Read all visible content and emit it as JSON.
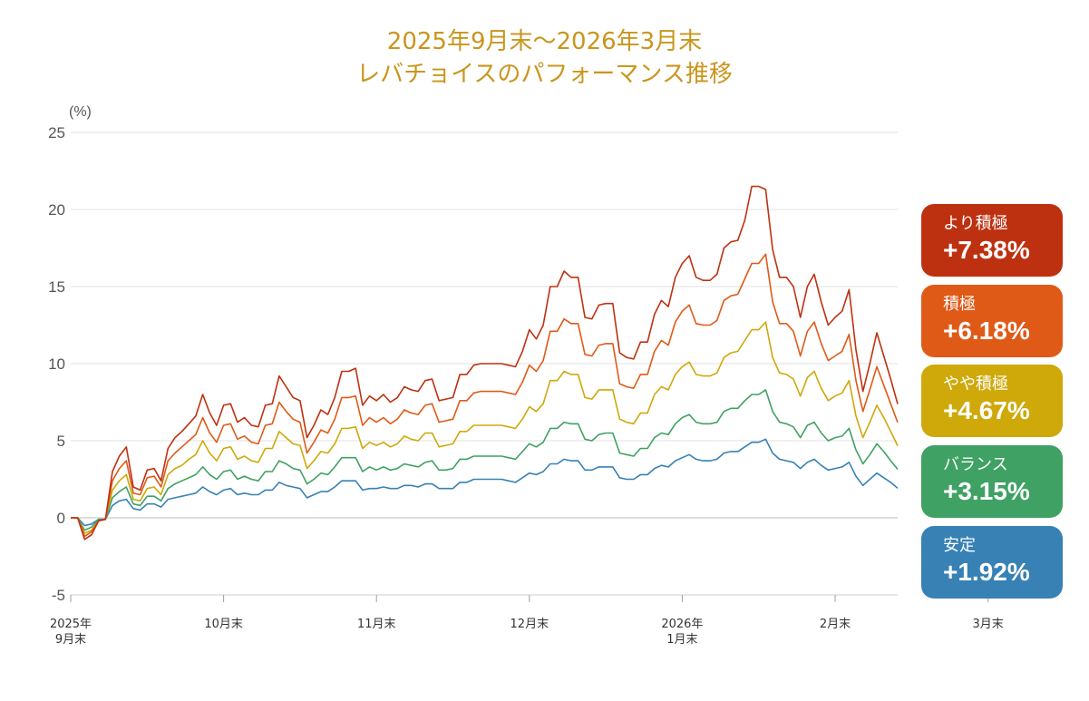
{
  "title_line1": "2025年9月末〜2026年3月末",
  "title_line2": "レバチョイスのパフォーマンス推移",
  "chart_data": {
    "type": "line",
    "ylabel": "(%)",
    "ylim": [
      -5,
      25
    ],
    "yticks": [
      "25",
      "20",
      "15",
      "10",
      "5",
      "0",
      "-5"
    ],
    "ytick_values": [
      25,
      20,
      15,
      10,
      5,
      0,
      -5
    ],
    "xticks": [
      {
        "pos": 0,
        "line1": "2025年",
        "line2": "9月末"
      },
      {
        "pos": 22,
        "line1": "10月末",
        "line2": ""
      },
      {
        "pos": 44,
        "line1": "11月末",
        "line2": ""
      },
      {
        "pos": 66,
        "line1": "12月末",
        "line2": ""
      },
      {
        "pos": 88,
        "line1": "2026年",
        "line2": "1月末"
      },
      {
        "pos": 110,
        "line1": "2月末",
        "line2": ""
      },
      {
        "pos": 132,
        "line1": "3月末",
        "line2": ""
      }
    ],
    "grid": true,
    "legend_position": "right",
    "series": [
      {
        "name": "より積極",
        "final": "+7.38%",
        "color": "#be3110",
        "values": [
          0,
          0,
          -1.4,
          -1.1,
          -0.2,
          -0.1,
          3.0,
          4.0,
          4.6,
          2.0,
          1.8,
          3.1,
          3.2,
          2.4,
          4.5,
          5.2,
          5.6,
          6.1,
          6.6,
          8.0,
          6.8,
          6.0,
          7.3,
          7.4,
          6.2,
          6.5,
          6.0,
          5.9,
          7.3,
          7.4,
          9.2,
          8.5,
          7.8,
          7.6,
          5.2,
          6.0,
          7.0,
          6.7,
          7.8,
          9.5,
          9.5,
          9.7,
          7.3,
          7.9,
          7.6,
          8.0,
          7.5,
          7.8,
          8.5,
          8.3,
          8.2,
          8.9,
          9.0,
          7.6,
          7.7,
          7.8,
          9.3,
          9.3,
          9.9,
          10.0,
          10.0,
          10.0,
          10.0,
          9.9,
          9.8,
          10.8,
          12.2,
          11.6,
          12.5,
          15.0,
          15.0,
          16.0,
          15.6,
          15.6,
          13.0,
          12.9,
          13.8,
          13.9,
          13.9,
          10.7,
          10.4,
          10.3,
          11.4,
          11.4,
          13.2,
          14.1,
          13.7,
          15.6,
          16.5,
          17.0,
          15.6,
          15.4,
          15.4,
          15.8,
          17.5,
          17.9,
          18.0,
          19.3,
          21.5,
          21.5,
          21.3,
          17.4,
          15.6,
          15.6,
          15.0,
          13.0,
          15.0,
          15.8,
          14.0,
          12.5,
          13.0,
          13.4,
          14.8,
          10.9,
          8.2,
          10.0,
          12.0,
          10.5,
          9.0,
          7.38
        ],
        "key": "s1"
      },
      {
        "name": "積極",
        "final": "+6.18%",
        "color": "#e05a17",
        "values": [
          0,
          0,
          -1.2,
          -0.9,
          -0.2,
          -0.1,
          2.4,
          3.2,
          3.7,
          1.6,
          1.5,
          2.6,
          2.7,
          2.0,
          3.7,
          4.2,
          4.6,
          5.0,
          5.4,
          6.5,
          5.5,
          4.9,
          6.0,
          6.1,
          5.1,
          5.3,
          4.9,
          4.8,
          6.0,
          6.1,
          7.5,
          6.9,
          6.4,
          6.2,
          4.2,
          4.9,
          5.7,
          5.5,
          6.4,
          7.8,
          7.8,
          7.9,
          6.0,
          6.5,
          6.2,
          6.5,
          6.1,
          6.4,
          7.0,
          6.8,
          6.7,
          7.3,
          7.4,
          6.2,
          6.3,
          6.4,
          7.6,
          7.6,
          8.1,
          8.2,
          8.2,
          8.2,
          8.2,
          8.1,
          8.0,
          8.8,
          9.9,
          9.5,
          10.2,
          12.1,
          12.1,
          12.9,
          12.6,
          12.6,
          10.6,
          10.5,
          11.2,
          11.3,
          11.3,
          8.7,
          8.5,
          8.4,
          9.3,
          9.3,
          10.8,
          11.5,
          11.2,
          12.7,
          13.4,
          13.8,
          12.6,
          12.5,
          12.5,
          12.8,
          14.1,
          14.4,
          14.5,
          15.5,
          16.5,
          16.5,
          17.1,
          14.0,
          12.6,
          12.6,
          12.1,
          10.5,
          12.1,
          12.7,
          11.3,
          10.2,
          10.5,
          10.8,
          11.9,
          8.9,
          6.9,
          8.3,
          9.8,
          8.6,
          7.4,
          6.18
        ],
        "key": "s2"
      },
      {
        "name": "やや積極",
        "final": "+4.67%",
        "color": "#cfa80a",
        "values": [
          0,
          0,
          -1.0,
          -0.8,
          -0.2,
          -0.1,
          1.8,
          2.4,
          2.8,
          1.2,
          1.1,
          1.9,
          2.0,
          1.5,
          2.8,
          3.2,
          3.4,
          3.8,
          4.1,
          5.0,
          4.2,
          3.7,
          4.5,
          4.6,
          3.8,
          4.0,
          3.7,
          3.6,
          4.5,
          4.5,
          5.6,
          5.2,
          4.8,
          4.7,
          3.2,
          3.7,
          4.3,
          4.2,
          4.8,
          5.8,
          5.8,
          5.9,
          4.5,
          4.9,
          4.7,
          4.9,
          4.6,
          4.8,
          5.3,
          5.1,
          5.0,
          5.5,
          5.5,
          4.6,
          4.7,
          4.8,
          5.6,
          5.6,
          6.0,
          6.0,
          6.0,
          6.0,
          6.0,
          5.9,
          5.8,
          6.4,
          7.2,
          6.9,
          7.4,
          8.9,
          8.9,
          9.5,
          9.3,
          9.3,
          7.8,
          7.7,
          8.3,
          8.3,
          8.3,
          6.4,
          6.2,
          6.1,
          6.8,
          6.8,
          8.0,
          8.5,
          8.3,
          9.3,
          9.8,
          10.1,
          9.3,
          9.2,
          9.2,
          9.4,
          10.4,
          10.7,
          10.8,
          11.5,
          12.2,
          12.2,
          12.7,
          10.4,
          9.4,
          9.3,
          9.0,
          7.9,
          9.1,
          9.5,
          8.4,
          7.6,
          7.9,
          8.1,
          8.9,
          6.6,
          5.2,
          6.2,
          7.3,
          6.5,
          5.6,
          4.67
        ],
        "key": "s3"
      },
      {
        "name": "バランス",
        "final": "+3.15%",
        "color": "#3fa163",
        "values": [
          0,
          0,
          -0.8,
          -0.6,
          -0.1,
          -0.1,
          1.3,
          1.7,
          2.0,
          0.9,
          0.8,
          1.4,
          1.4,
          1.1,
          1.9,
          2.2,
          2.4,
          2.6,
          2.8,
          3.3,
          2.8,
          2.5,
          3.0,
          3.1,
          2.5,
          2.7,
          2.5,
          2.4,
          3.0,
          3.0,
          3.7,
          3.5,
          3.2,
          3.1,
          2.2,
          2.5,
          2.9,
          2.8,
          3.3,
          3.9,
          3.9,
          3.9,
          3.0,
          3.3,
          3.1,
          3.3,
          3.1,
          3.2,
          3.5,
          3.4,
          3.3,
          3.6,
          3.7,
          3.1,
          3.1,
          3.2,
          3.8,
          3.8,
          4.0,
          4.0,
          4.0,
          4.0,
          4.0,
          3.9,
          3.8,
          4.3,
          4.8,
          4.6,
          4.9,
          5.8,
          5.8,
          6.2,
          6.1,
          6.1,
          5.1,
          5.0,
          5.4,
          5.5,
          5.5,
          4.2,
          4.1,
          4.0,
          4.5,
          4.5,
          5.2,
          5.5,
          5.4,
          6.1,
          6.5,
          6.7,
          6.2,
          6.1,
          6.1,
          6.2,
          6.9,
          7.1,
          7.1,
          7.6,
          8.0,
          8.0,
          8.3,
          6.9,
          6.2,
          6.1,
          5.9,
          5.2,
          6.0,
          6.2,
          5.5,
          5.0,
          5.2,
          5.3,
          5.8,
          4.4,
          3.5,
          4.1,
          4.8,
          4.3,
          3.7,
          3.15
        ],
        "key": "s4"
      },
      {
        "name": "安定",
        "final": "+1.92%",
        "color": "#3781b4",
        "values": [
          0,
          0,
          -0.5,
          -0.4,
          -0.1,
          -0.1,
          0.8,
          1.1,
          1.2,
          0.6,
          0.5,
          0.9,
          0.9,
          0.7,
          1.2,
          1.3,
          1.4,
          1.5,
          1.6,
          2.0,
          1.7,
          1.5,
          1.8,
          1.9,
          1.5,
          1.6,
          1.5,
          1.5,
          1.8,
          1.8,
          2.3,
          2.1,
          2.0,
          1.9,
          1.3,
          1.5,
          1.7,
          1.7,
          2.0,
          2.4,
          2.4,
          2.4,
          1.8,
          1.9,
          1.9,
          2.0,
          1.9,
          1.9,
          2.1,
          2.1,
          2.0,
          2.2,
          2.2,
          1.9,
          1.9,
          1.9,
          2.3,
          2.3,
          2.5,
          2.5,
          2.5,
          2.5,
          2.5,
          2.4,
          2.3,
          2.6,
          2.9,
          2.8,
          3.0,
          3.5,
          3.5,
          3.8,
          3.7,
          3.7,
          3.1,
          3.1,
          3.3,
          3.3,
          3.3,
          2.6,
          2.5,
          2.5,
          2.8,
          2.8,
          3.2,
          3.4,
          3.3,
          3.7,
          3.9,
          4.1,
          3.8,
          3.7,
          3.7,
          3.8,
          4.2,
          4.3,
          4.3,
          4.6,
          4.9,
          4.9,
          5.1,
          4.2,
          3.8,
          3.7,
          3.6,
          3.2,
          3.6,
          3.8,
          3.4,
          3.1,
          3.2,
          3.3,
          3.6,
          2.7,
          2.1,
          2.5,
          2.9,
          2.6,
          2.3,
          1.92
        ],
        "key": "s5"
      }
    ]
  }
}
